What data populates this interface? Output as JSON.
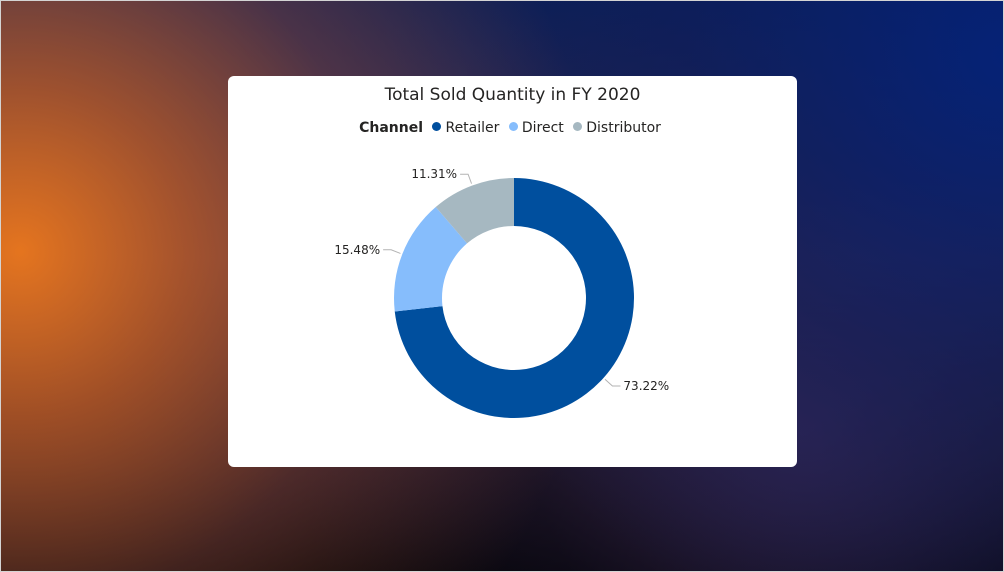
{
  "chart_data": {
    "type": "pie",
    "title": "Total Sold Quantity in FY 2020",
    "legend": {
      "title": "Channel",
      "placement": "top-center"
    },
    "categories": [
      "Retailer",
      "Direct",
      "Distributor"
    ],
    "values": [
      73.22,
      15.48,
      11.31
    ],
    "value_labels": [
      "73.22%",
      "15.48%",
      "11.31%"
    ],
    "colors": [
      "#004f9e",
      "#86bdfc",
      "#a6b8c1"
    ],
    "donut": true
  }
}
